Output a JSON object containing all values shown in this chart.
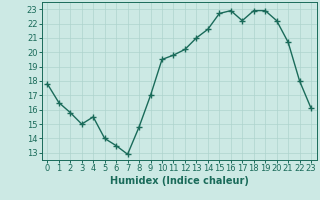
{
  "x": [
    0,
    1,
    2,
    3,
    4,
    5,
    6,
    7,
    8,
    9,
    10,
    11,
    12,
    13,
    14,
    15,
    16,
    17,
    18,
    19,
    20,
    21,
    22,
    23
  ],
  "y": [
    17.8,
    16.5,
    15.8,
    15.0,
    15.5,
    14.0,
    13.5,
    12.9,
    14.8,
    17.0,
    19.5,
    19.8,
    20.2,
    21.0,
    21.6,
    22.7,
    22.9,
    22.2,
    22.9,
    22.9,
    22.2,
    20.7,
    18.0,
    16.1
  ],
  "line_color": "#1a6b5a",
  "marker": "+",
  "markersize": 4,
  "linewidth": 1.0,
  "xlabel": "Humidex (Indice chaleur)",
  "xlim": [
    -0.5,
    23.5
  ],
  "ylim": [
    12.5,
    23.5
  ],
  "yticks": [
    13,
    14,
    15,
    16,
    17,
    18,
    19,
    20,
    21,
    22,
    23
  ],
  "xticks": [
    0,
    1,
    2,
    3,
    4,
    5,
    6,
    7,
    8,
    9,
    10,
    11,
    12,
    13,
    14,
    15,
    16,
    17,
    18,
    19,
    20,
    21,
    22,
    23
  ],
  "bg_color": "#cce9e4",
  "grid_color": "#aed4ce",
  "tick_color": "#1a6b5a",
  "xlabel_fontsize": 7,
  "tick_fontsize": 6
}
